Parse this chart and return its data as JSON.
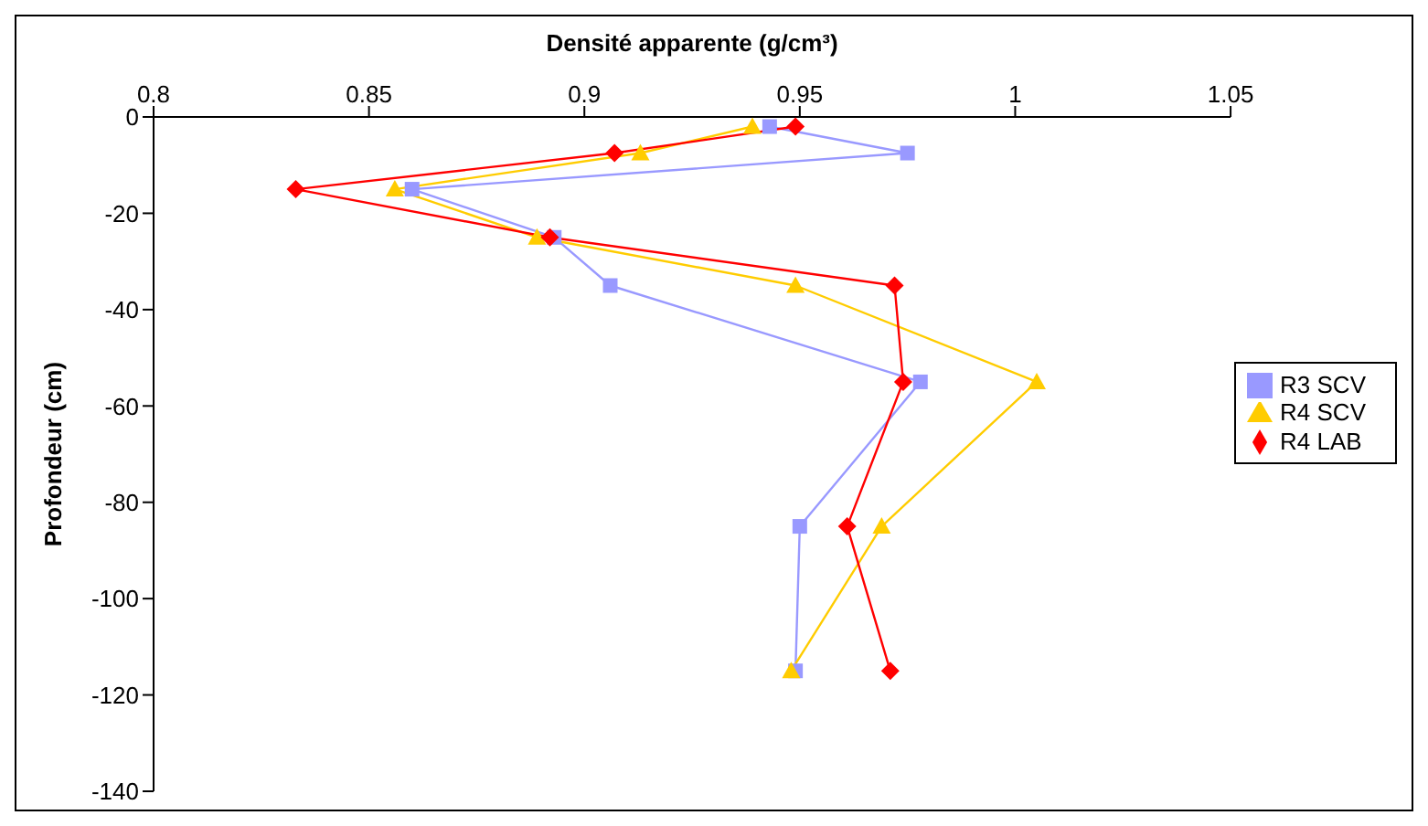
{
  "chart_data": {
    "type": "line",
    "xlabel": "Densité apparente (g/cm³)",
    "ylabel": "Profondeur (cm)",
    "xlim": [
      0.8,
      1.05
    ],
    "xticks": [
      0.8,
      0.85,
      0.9,
      0.95,
      1,
      1.05
    ],
    "ylim": [
      -140,
      0
    ],
    "yticks": [
      0,
      -20,
      -40,
      -60,
      -80,
      -100,
      -120,
      -140
    ],
    "grid": false,
    "legend": "right",
    "line_style": "solid",
    "series": [
      {
        "name": "R3 SCV",
        "color": "#9999ff",
        "marker": "square",
        "x": [
          0.943,
          0.975,
          0.86,
          0.893,
          0.906,
          0.978,
          0.95,
          0.949
        ],
        "values": [
          -2,
          -7.5,
          -15,
          -25,
          -35,
          -55,
          -85,
          -115
        ]
      },
      {
        "name": "R4 SCV",
        "color": "#ffcc00",
        "marker": "triangle",
        "x": [
          0.939,
          0.913,
          0.856,
          0.889,
          0.949,
          1.005,
          0.969,
          0.948
        ],
        "values": [
          -2,
          -7.5,
          -15,
          -25,
          -35,
          -55,
          -85,
          -115
        ]
      },
      {
        "name": "R4 LAB",
        "color": "#ff0000",
        "marker": "diamond",
        "x": [
          0.949,
          0.907,
          0.833,
          0.892,
          0.972,
          0.974,
          0.961,
          0.971
        ],
        "values": [
          -2,
          -7.5,
          -15,
          -25,
          -35,
          -55,
          -85,
          -115
        ]
      }
    ]
  }
}
